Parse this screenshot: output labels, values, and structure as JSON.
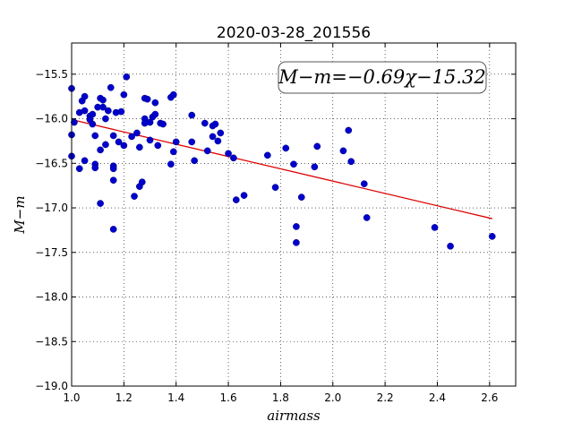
{
  "chart_data": {
    "type": "scatter",
    "title": "2020-03-28_201556",
    "xlabel": "airmass",
    "ylabel": "M−m",
    "annotation": "M−m=−0.69χ−15.32",
    "xlim": [
      1.0,
      2.7
    ],
    "ylim": [
      -19.0,
      -15.15
    ],
    "ylim_note": "y axis inverted: -19.0 at bottom",
    "x_ticks": [
      "1.0",
      "1.2",
      "1.4",
      "1.6",
      "1.8",
      "2.0",
      "2.2",
      "2.4",
      "2.6"
    ],
    "x_tick_values": [
      1.0,
      1.2,
      1.4,
      1.6,
      1.8,
      2.0,
      2.2,
      2.4,
      2.6
    ],
    "y_ticks": [
      "−15.5",
      "−16.0",
      "−16.5",
      "−17.0",
      "−17.5",
      "−18.0",
      "−18.5",
      "−19.0"
    ],
    "y_tick_values": [
      -15.5,
      -16.0,
      -16.5,
      -17.0,
      -17.5,
      -18.0,
      -18.5,
      -19.0
    ],
    "grid": true,
    "point_color": "#0000cc",
    "fit_color": "#dd0000",
    "fit": {
      "slope": -0.69,
      "intercept": -15.32,
      "x_range": [
        1.0,
        2.61
      ]
    },
    "points": [
      [
        1.0,
        -15.66
      ],
      [
        1.0,
        -16.18
      ],
      [
        1.0,
        -16.42
      ],
      [
        1.01,
        -16.04
      ],
      [
        1.03,
        -15.93
      ],
      [
        1.03,
        -16.56
      ],
      [
        1.04,
        -15.8
      ],
      [
        1.05,
        -15.75
      ],
      [
        1.05,
        -15.91
      ],
      [
        1.05,
        -16.47
      ],
      [
        1.07,
        -15.97
      ],
      [
        1.07,
        -16.01
      ],
      [
        1.08,
        -15.95
      ],
      [
        1.08,
        -16.06
      ],
      [
        1.09,
        -16.19
      ],
      [
        1.09,
        -16.51
      ],
      [
        1.09,
        -16.55
      ],
      [
        1.1,
        -15.87
      ],
      [
        1.11,
        -15.77
      ],
      [
        1.11,
        -16.35
      ],
      [
        1.11,
        -16.95
      ],
      [
        1.12,
        -15.79
      ],
      [
        1.12,
        -15.87
      ],
      [
        1.13,
        -16.0
      ],
      [
        1.13,
        -16.29
      ],
      [
        1.14,
        -15.91
      ],
      [
        1.15,
        -15.65
      ],
      [
        1.16,
        -16.19
      ],
      [
        1.16,
        -16.53
      ],
      [
        1.16,
        -16.56
      ],
      [
        1.16,
        -16.69
      ],
      [
        1.16,
        -17.24
      ],
      [
        1.17,
        -15.93
      ],
      [
        1.18,
        -16.26
      ],
      [
        1.19,
        -15.92
      ],
      [
        1.2,
        -15.73
      ],
      [
        1.2,
        -16.3
      ],
      [
        1.21,
        -15.53
      ],
      [
        1.23,
        -16.2
      ],
      [
        1.24,
        -16.87
      ],
      [
        1.25,
        -16.16
      ],
      [
        1.26,
        -16.32
      ],
      [
        1.26,
        -16.76
      ],
      [
        1.27,
        -16.71
      ],
      [
        1.28,
        -16.0
      ],
      [
        1.28,
        -16.05
      ],
      [
        1.28,
        -15.77
      ],
      [
        1.29,
        -15.78
      ],
      [
        1.3,
        -16.04
      ],
      [
        1.3,
        -16.24
      ],
      [
        1.31,
        -15.98
      ],
      [
        1.32,
        -15.95
      ],
      [
        1.32,
        -15.82
      ],
      [
        1.33,
        -16.3
      ],
      [
        1.34,
        -16.05
      ],
      [
        1.35,
        -16.06
      ],
      [
        1.38,
        -16.51
      ],
      [
        1.38,
        -15.76
      ],
      [
        1.39,
        -16.37
      ],
      [
        1.39,
        -15.73
      ],
      [
        1.4,
        -16.26
      ],
      [
        1.46,
        -15.96
      ],
      [
        1.46,
        -16.26
      ],
      [
        1.47,
        -16.47
      ],
      [
        1.51,
        -16.05
      ],
      [
        1.52,
        -16.36
      ],
      [
        1.54,
        -16.08
      ],
      [
        1.54,
        -16.2
      ],
      [
        1.55,
        -16.06
      ],
      [
        1.56,
        -16.25
      ],
      [
        1.57,
        -16.16
      ],
      [
        1.6,
        -16.39
      ],
      [
        1.62,
        -16.44
      ],
      [
        1.63,
        -16.91
      ],
      [
        1.66,
        -16.86
      ],
      [
        1.75,
        -16.41
      ],
      [
        1.78,
        -16.77
      ],
      [
        1.82,
        -16.33
      ],
      [
        1.85,
        -16.51
      ],
      [
        1.86,
        -17.21
      ],
      [
        1.86,
        -17.39
      ],
      [
        1.88,
        -16.88
      ],
      [
        1.93,
        -16.54
      ],
      [
        1.94,
        -16.31
      ],
      [
        2.04,
        -16.36
      ],
      [
        2.06,
        -16.13
      ],
      [
        2.07,
        -16.48
      ],
      [
        2.12,
        -16.73
      ],
      [
        2.13,
        -17.11
      ],
      [
        2.39,
        -17.22
      ],
      [
        2.45,
        -17.43
      ],
      [
        2.61,
        -17.32
      ]
    ]
  }
}
